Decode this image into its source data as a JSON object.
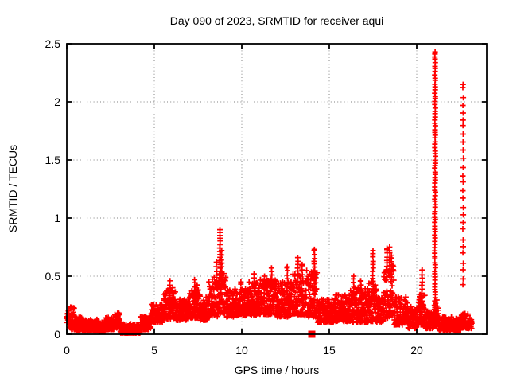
{
  "figure": {
    "background_color": "#ffffff",
    "title": "Day 090 of 2023, SRMTID for receiver aqui"
  },
  "chart_data": {
    "type": "scatter",
    "title": "Day 090 of 2023, SRMTID for receiver aqui",
    "xlabel": "GPS time / hours",
    "ylabel": "SRMTID / TECUs",
    "xlim": [
      0,
      24
    ],
    "ylim": [
      0,
      2.5
    ],
    "xticks": [
      0,
      5,
      10,
      15,
      20
    ],
    "xtick_labels": [
      "0",
      "5",
      "10",
      "15",
      "20"
    ],
    "yticks": [
      0,
      0.5,
      1,
      1.5,
      2,
      2.5
    ],
    "ytick_labels": [
      "0",
      "0.5",
      "1",
      "1.5",
      "2",
      "2.5"
    ],
    "grid": true,
    "legend": "none",
    "marker": "plus",
    "marker_color": "#ff0000",
    "grid_color": "#999999",
    "border_color": "#000000",
    "sample_interval_hours": 0.008333,
    "data_start_hour": 0.0,
    "data_end_hour": 23.15,
    "max_point": {
      "x": 21.05,
      "y": 2.43
    },
    "second_peak": {
      "x": 22.65,
      "y": 2.15
    },
    "band_envelope": [
      {
        "from": 0.0,
        "to": 0.15,
        "min": 0.1,
        "max": 0.22
      },
      {
        "from": 0.15,
        "to": 0.45,
        "min": 0.04,
        "max": 0.24
      },
      {
        "from": 0.45,
        "to": 0.9,
        "min": 0.03,
        "max": 0.15
      },
      {
        "from": 0.9,
        "to": 1.8,
        "min": 0.03,
        "max": 0.13
      },
      {
        "from": 1.8,
        "to": 2.2,
        "min": 0.02,
        "max": 0.11
      },
      {
        "from": 2.2,
        "to": 2.7,
        "min": 0.04,
        "max": 0.15
      },
      {
        "from": 2.7,
        "to": 3.05,
        "min": 0.05,
        "max": 0.19
      },
      {
        "from": 3.05,
        "to": 4.2,
        "min": 0.01,
        "max": 0.09
      },
      {
        "from": 4.2,
        "to": 4.8,
        "min": 0.04,
        "max": 0.16
      },
      {
        "from": 4.8,
        "to": 5.5,
        "min": 0.1,
        "max": 0.26
      },
      {
        "from": 5.5,
        "to": 6.2,
        "min": 0.13,
        "max": 0.38
      },
      {
        "from": 6.2,
        "to": 7.0,
        "min": 0.12,
        "max": 0.3
      },
      {
        "from": 7.0,
        "to": 7.6,
        "min": 0.14,
        "max": 0.38
      },
      {
        "from": 7.6,
        "to": 8.1,
        "min": 0.12,
        "max": 0.33
      },
      {
        "from": 8.1,
        "to": 8.6,
        "min": 0.15,
        "max": 0.5
      },
      {
        "from": 8.6,
        "to": 9.1,
        "min": 0.18,
        "max": 0.55
      },
      {
        "from": 9.1,
        "to": 9.6,
        "min": 0.15,
        "max": 0.38
      },
      {
        "from": 9.6,
        "to": 10.4,
        "min": 0.16,
        "max": 0.4
      },
      {
        "from": 10.4,
        "to": 11.0,
        "min": 0.16,
        "max": 0.45
      },
      {
        "from": 11.0,
        "to": 12.0,
        "min": 0.17,
        "max": 0.48
      },
      {
        "from": 12.0,
        "to": 12.9,
        "min": 0.15,
        "max": 0.45
      },
      {
        "from": 12.9,
        "to": 13.6,
        "min": 0.17,
        "max": 0.52
      },
      {
        "from": 13.6,
        "to": 14.3,
        "min": 0.15,
        "max": 0.55
      },
      {
        "from": 14.3,
        "to": 15.3,
        "min": 0.1,
        "max": 0.3
      },
      {
        "from": 15.3,
        "to": 16.2,
        "min": 0.11,
        "max": 0.34
      },
      {
        "from": 16.2,
        "to": 17.2,
        "min": 0.1,
        "max": 0.4
      },
      {
        "from": 17.2,
        "to": 17.7,
        "min": 0.11,
        "max": 0.45
      },
      {
        "from": 17.7,
        "to": 18.1,
        "min": 0.1,
        "max": 0.32
      },
      {
        "from": 18.1,
        "to": 18.7,
        "min": 0.14,
        "max": 0.6
      },
      {
        "from": 18.7,
        "to": 19.5,
        "min": 0.08,
        "max": 0.32
      },
      {
        "from": 19.5,
        "to": 20.1,
        "min": 0.05,
        "max": 0.24
      },
      {
        "from": 20.1,
        "to": 20.5,
        "min": 0.08,
        "max": 0.35
      },
      {
        "from": 20.5,
        "to": 21.0,
        "min": 0.05,
        "max": 0.2
      },
      {
        "from": 21.0,
        "to": 21.25,
        "min": 0.06,
        "max": 0.3
      },
      {
        "from": 21.25,
        "to": 22.55,
        "min": 0.03,
        "max": 0.15
      },
      {
        "from": 22.55,
        "to": 23.0,
        "min": 0.05,
        "max": 0.18
      },
      {
        "from": 23.0,
        "to": 23.15,
        "min": 0.05,
        "max": 0.15
      }
    ],
    "spikes": [
      {
        "x": 5.9,
        "top": 0.46,
        "base": 0.25,
        "step": 0.035
      },
      {
        "x": 6.05,
        "top": 0.4,
        "base": 0.25,
        "step": 0.04
      },
      {
        "x": 7.3,
        "top": 0.47,
        "base": 0.3,
        "step": 0.035
      },
      {
        "x": 7.45,
        "top": 0.42,
        "base": 0.3,
        "step": 0.04
      },
      {
        "x": 8.55,
        "top": 0.62,
        "base": 0.4,
        "step": 0.035
      },
      {
        "x": 8.75,
        "top": 0.9,
        "base": 0.35,
        "step": 0.028
      },
      {
        "x": 8.85,
        "top": 0.72,
        "base": 0.4,
        "step": 0.035
      },
      {
        "x": 9.95,
        "top": 0.45,
        "base": 0.35,
        "step": 0.04
      },
      {
        "x": 10.7,
        "top": 0.52,
        "base": 0.38,
        "step": 0.035
      },
      {
        "x": 11.3,
        "top": 0.5,
        "base": 0.4,
        "step": 0.04
      },
      {
        "x": 11.7,
        "top": 0.57,
        "base": 0.4,
        "step": 0.035
      },
      {
        "x": 12.6,
        "top": 0.58,
        "base": 0.4,
        "step": 0.035
      },
      {
        "x": 13.2,
        "top": 0.66,
        "base": 0.45,
        "step": 0.03
      },
      {
        "x": 13.45,
        "top": 0.6,
        "base": 0.45,
        "step": 0.035
      },
      {
        "x": 14.15,
        "top": 0.73,
        "base": 0.35,
        "step": 0.028
      },
      {
        "x": 16.4,
        "top": 0.5,
        "base": 0.3,
        "step": 0.035
      },
      {
        "x": 16.8,
        "top": 0.46,
        "base": 0.3,
        "step": 0.04
      },
      {
        "x": 17.5,
        "top": 0.72,
        "base": 0.3,
        "step": 0.03
      },
      {
        "x": 18.3,
        "top": 0.74,
        "base": 0.55,
        "step": 0.03
      },
      {
        "x": 18.45,
        "top": 0.75,
        "base": 0.5,
        "step": 0.028
      },
      {
        "x": 18.55,
        "top": 0.68,
        "base": 0.5,
        "step": 0.03
      },
      {
        "x": 20.3,
        "top": 0.55,
        "base": 0.25,
        "step": 0.033
      },
      {
        "x": 21.05,
        "top": 2.43,
        "base": 0.1,
        "step": 0.026
      },
      {
        "x": 22.65,
        "top": 2.15,
        "base": 0.42,
        "step": 0.068
      }
    ],
    "special_markers": [
      {
        "x": 14.0,
        "y": 0.0,
        "marker": "filled-square",
        "color": "#ff0000"
      }
    ]
  }
}
